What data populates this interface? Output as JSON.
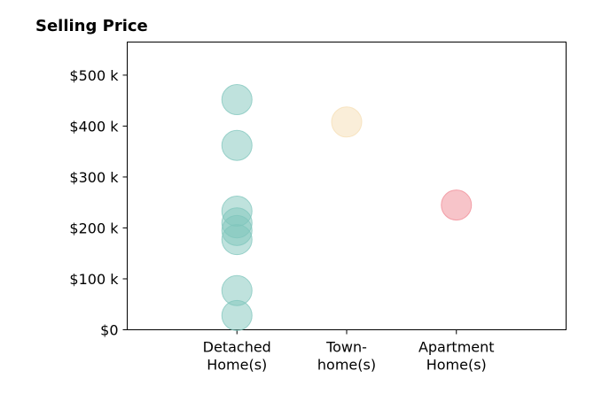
{
  "chart_data": {
    "type": "scatter",
    "title": "Selling Price",
    "xlabel": "",
    "ylabel": "",
    "categories": [
      [
        "Detached",
        "Home(s)"
      ],
      [
        "Town-",
        "home(s)"
      ],
      [
        "Apartment",
        "Home(s)"
      ]
    ],
    "y_ticks": [
      {
        "value": 0,
        "label": "$0"
      },
      {
        "value": 100000,
        "label": "$100 k"
      },
      {
        "value": 200000,
        "label": "$200 k"
      },
      {
        "value": 300000,
        "label": "$300 k"
      },
      {
        "value": 400000,
        "label": "$400 k"
      },
      {
        "value": 500000,
        "label": "$500 k"
      }
    ],
    "ylim": [
      0,
      565000
    ],
    "xlim": [
      -1,
      3
    ],
    "grid": false,
    "legend": "none",
    "series": [
      {
        "category_index": 0,
        "color": "#7FC6BC",
        "values": [
          452000,
          362000,
          233000,
          210000,
          195000,
          177000,
          77000,
          28000
        ]
      },
      {
        "category_index": 1,
        "color": "#F5DEB3",
        "values": [
          408000
        ]
      },
      {
        "category_index": 2,
        "color": "#F08A94",
        "values": [
          245000
        ]
      }
    ]
  }
}
